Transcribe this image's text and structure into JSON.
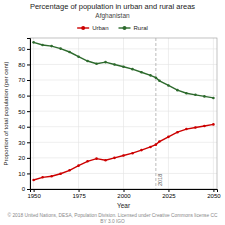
{
  "chart_data": {
    "type": "line",
    "title": "Percentage of population in urban and rural areas",
    "subtitle": "Afghanistan",
    "x_label": "Year",
    "y_label": "Proportion of total population (per cent)",
    "x": [
      1950,
      1955,
      1960,
      1965,
      1970,
      1975,
      1980,
      1985,
      1990,
      1995,
      2000,
      2005,
      2010,
      2015,
      2018,
      2020,
      2025,
      2030,
      2035,
      2040,
      2045,
      2050
    ],
    "series": [
      {
        "name": "Urban",
        "color": "#cc0000",
        "marker": "circle",
        "values": [
          5.8,
          7.5,
          8.2,
          9.8,
          12.0,
          15.0,
          17.8,
          19.5,
          18.5,
          20.0,
          21.5,
          23.0,
          25.0,
          27.0,
          28.5,
          30.5,
          33.5,
          36.5,
          38.5,
          39.5,
          40.5,
          41.5
        ]
      },
      {
        "name": "Rural",
        "color": "#2d6a2d",
        "marker": "circle",
        "values": [
          94.2,
          92.5,
          91.8,
          90.2,
          88.0,
          85.0,
          82.2,
          80.5,
          81.5,
          80.0,
          78.5,
          77.0,
          75.0,
          73.0,
          71.5,
          69.5,
          66.5,
          63.5,
          61.5,
          60.5,
          59.5,
          58.5
        ]
      }
    ],
    "annotations": [
      {
        "x": 2018,
        "label": "2018"
      }
    ],
    "xlim": [
      1948,
      2052
    ],
    "xticks": [
      1950,
      1975,
      2000,
      2025,
      2050
    ],
    "ylim": [
      0,
      97
    ],
    "yticks": [
      0,
      10,
      20,
      30,
      40,
      50,
      60,
      70,
      80,
      90
    ],
    "grid": true,
    "footnote": "© 2018 United Nations, DESA, Population Division. Licensed under Creative Commons license CC BY 3.0 IGO"
  }
}
